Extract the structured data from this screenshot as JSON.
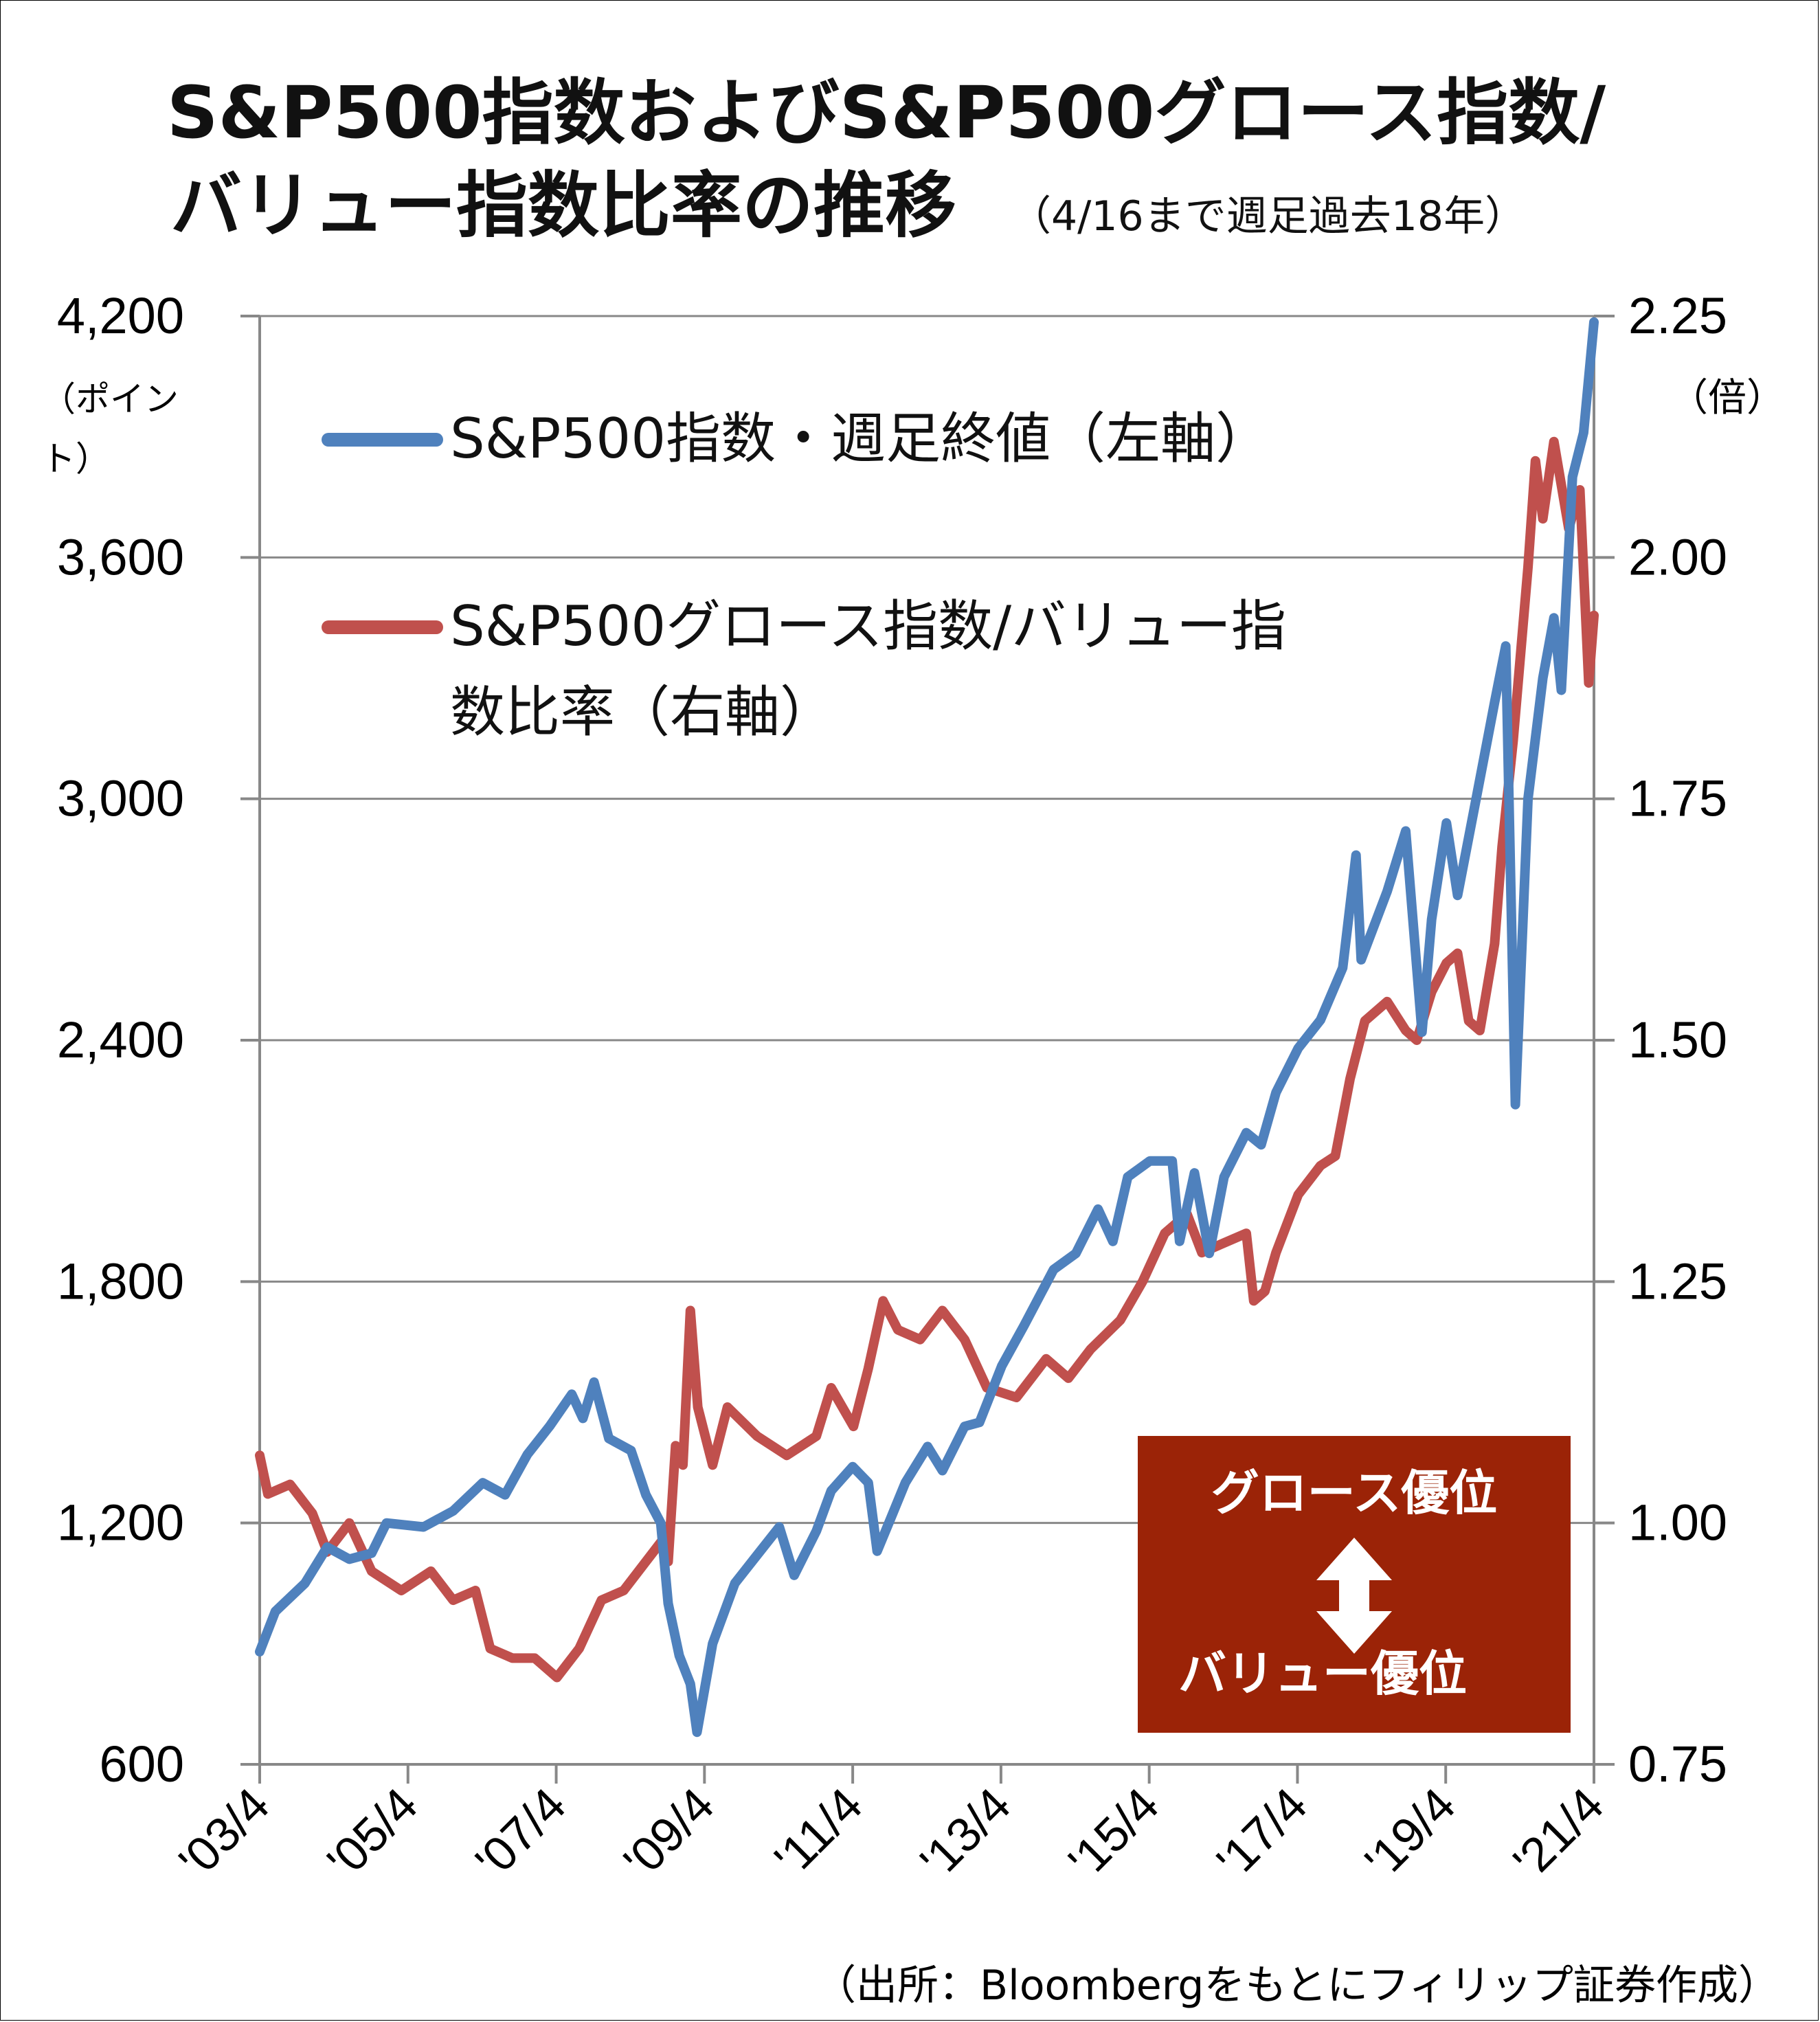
{
  "title": {
    "line1": "S&P500指数およびS&P500グロース指数/",
    "line2": "バリュー指数比率の推移",
    "period": "（4/16まで週足過去18年）"
  },
  "left_axis": {
    "unit_line1": "（ポイン",
    "unit_line2": "ト）",
    "ticks": [
      "4,200",
      "3,600",
      "3,000",
      "2,400",
      "1,800",
      "1,200",
      "600"
    ]
  },
  "right_axis": {
    "unit": "（倍）",
    "ticks": [
      "2.25",
      "2.00",
      "1.75",
      "1.50",
      "1.25",
      "1.00",
      "0.75"
    ]
  },
  "x_axis": {
    "ticks": [
      "'03/4",
      "'05/4",
      "'07/4",
      "'09/4",
      "'11/4",
      "'13/4",
      "'15/4",
      "'17/4",
      "'19/4",
      "'21/4"
    ]
  },
  "legend": {
    "sp500": "S&P500指数・週足終値（左軸）",
    "ratio_line1": "S&P500グロース指数/バリュー指",
    "ratio_line2": "数比率（右軸）"
  },
  "annotation": {
    "top": "グロース優位",
    "bottom": "バリュー優位",
    "arrow_icon": "double-arrow-vertical",
    "box_color": "#9B2307"
  },
  "source": "（出所：Bloombergをもとにフィリップ証券作成）",
  "colors": {
    "sp500": "#4F81BD",
    "ratio": "#C0504D",
    "grid": "#888888"
  },
  "chart_data": {
    "type": "line",
    "title": "S&P500指数およびS&P500グロース指数/バリュー指数比率の推移",
    "x_range": [
      2003.29,
      2021.29
    ],
    "x_tick_labels": [
      "'03/4",
      "'05/4",
      "'07/4",
      "'09/4",
      "'11/4",
      "'13/4",
      "'15/4",
      "'17/4",
      "'19/4",
      "'21/4"
    ],
    "y_left": {
      "range": [
        600,
        4200
      ],
      "ticks": [
        600,
        1200,
        1800,
        2400,
        3000,
        3600,
        4200
      ]
    },
    "y_right": {
      "range": [
        0.75,
        2.25
      ],
      "ticks": [
        0.75,
        1.0,
        1.25,
        1.5,
        1.75,
        2.0,
        2.25
      ]
    },
    "grid": true,
    "legend_position": "top-left",
    "series": [
      {
        "name": "S&P500指数・週足終値（左軸）",
        "axis": "left",
        "points": [
          [
            2003.29,
            880
          ],
          [
            2003.5,
            980
          ],
          [
            2003.9,
            1050
          ],
          [
            2004.2,
            1140
          ],
          [
            2004.5,
            1110
          ],
          [
            2004.8,
            1125
          ],
          [
            2005.0,
            1200
          ],
          [
            2005.5,
            1190
          ],
          [
            2005.9,
            1230
          ],
          [
            2006.3,
            1300
          ],
          [
            2006.6,
            1270
          ],
          [
            2006.9,
            1370
          ],
          [
            2007.2,
            1440
          ],
          [
            2007.5,
            1520
          ],
          [
            2007.65,
            1460
          ],
          [
            2007.8,
            1550
          ],
          [
            2008.0,
            1410
          ],
          [
            2008.3,
            1380
          ],
          [
            2008.5,
            1270
          ],
          [
            2008.7,
            1200
          ],
          [
            2008.8,
            1000
          ],
          [
            2008.95,
            870
          ],
          [
            2009.1,
            800
          ],
          [
            2009.19,
            680
          ],
          [
            2009.4,
            900
          ],
          [
            2009.7,
            1050
          ],
          [
            2010.0,
            1120
          ],
          [
            2010.3,
            1190
          ],
          [
            2010.5,
            1070
          ],
          [
            2010.8,
            1180
          ],
          [
            2011.0,
            1280
          ],
          [
            2011.29,
            1340
          ],
          [
            2011.5,
            1300
          ],
          [
            2011.62,
            1130
          ],
          [
            2011.8,
            1210
          ],
          [
            2012.0,
            1300
          ],
          [
            2012.3,
            1390
          ],
          [
            2012.5,
            1330
          ],
          [
            2012.8,
            1440
          ],
          [
            2013.0,
            1450
          ],
          [
            2013.3,
            1590
          ],
          [
            2013.6,
            1690
          ],
          [
            2014.0,
            1830
          ],
          [
            2014.3,
            1870
          ],
          [
            2014.6,
            1980
          ],
          [
            2014.8,
            1900
          ],
          [
            2015.0,
            2060
          ],
          [
            2015.3,
            2100
          ],
          [
            2015.6,
            2100
          ],
          [
            2015.7,
            1900
          ],
          [
            2015.9,
            2070
          ],
          [
            2016.1,
            1870
          ],
          [
            2016.3,
            2060
          ],
          [
            2016.6,
            2170
          ],
          [
            2016.8,
            2140
          ],
          [
            2017.0,
            2270
          ],
          [
            2017.3,
            2380
          ],
          [
            2017.6,
            2450
          ],
          [
            2017.9,
            2580
          ],
          [
            2018.08,
            2860
          ],
          [
            2018.15,
            2600
          ],
          [
            2018.5,
            2770
          ],
          [
            2018.75,
            2920
          ],
          [
            2018.97,
            2420
          ],
          [
            2019.1,
            2700
          ],
          [
            2019.3,
            2940
          ],
          [
            2019.45,
            2760
          ],
          [
            2019.7,
            3000
          ],
          [
            2019.95,
            3240
          ],
          [
            2020.1,
            3380
          ],
          [
            2020.23,
            2240
          ],
          [
            2020.4,
            3000
          ],
          [
            2020.6,
            3300
          ],
          [
            2020.75,
            3450
          ],
          [
            2020.85,
            3270
          ],
          [
            2021.0,
            3800
          ],
          [
            2021.15,
            3910
          ],
          [
            2021.29,
            4185
          ]
        ]
      },
      {
        "name": "S&P500グロース指数/バリュー指数比率（右軸）",
        "axis": "right",
        "points": [
          [
            2003.29,
            1.07
          ],
          [
            2003.4,
            1.03
          ],
          [
            2003.7,
            1.04
          ],
          [
            2004.0,
            1.01
          ],
          [
            2004.2,
            0.97
          ],
          [
            2004.5,
            1.0
          ],
          [
            2004.8,
            0.95
          ],
          [
            2005.2,
            0.93
          ],
          [
            2005.6,
            0.95
          ],
          [
            2005.9,
            0.92
          ],
          [
            2006.2,
            0.93
          ],
          [
            2006.4,
            0.87
          ],
          [
            2006.7,
            0.86
          ],
          [
            2007.0,
            0.86
          ],
          [
            2007.3,
            0.84
          ],
          [
            2007.6,
            0.87
          ],
          [
            2007.9,
            0.92
          ],
          [
            2008.2,
            0.93
          ],
          [
            2008.5,
            0.96
          ],
          [
            2008.7,
            0.98
          ],
          [
            2008.8,
            0.96
          ],
          [
            2008.9,
            1.08
          ],
          [
            2009.0,
            1.06
          ],
          [
            2009.1,
            1.22
          ],
          [
            2009.2,
            1.12
          ],
          [
            2009.4,
            1.06
          ],
          [
            2009.6,
            1.12
          ],
          [
            2010.0,
            1.09
          ],
          [
            2010.4,
            1.07
          ],
          [
            2010.8,
            1.09
          ],
          [
            2011.0,
            1.14
          ],
          [
            2011.3,
            1.1
          ],
          [
            2011.5,
            1.16
          ],
          [
            2011.7,
            1.23
          ],
          [
            2011.9,
            1.2
          ],
          [
            2012.2,
            1.19
          ],
          [
            2012.5,
            1.22
          ],
          [
            2012.8,
            1.19
          ],
          [
            2013.1,
            1.14
          ],
          [
            2013.5,
            1.13
          ],
          [
            2013.9,
            1.17
          ],
          [
            2014.2,
            1.15
          ],
          [
            2014.5,
            1.18
          ],
          [
            2014.9,
            1.21
          ],
          [
            2015.2,
            1.25
          ],
          [
            2015.5,
            1.3
          ],
          [
            2015.8,
            1.32
          ],
          [
            2016.0,
            1.28
          ],
          [
            2016.3,
            1.29
          ],
          [
            2016.6,
            1.3
          ],
          [
            2016.7,
            1.23
          ],
          [
            2016.85,
            1.24
          ],
          [
            2017.0,
            1.28
          ],
          [
            2017.3,
            1.34
          ],
          [
            2017.6,
            1.37
          ],
          [
            2017.8,
            1.38
          ],
          [
            2018.0,
            1.46
          ],
          [
            2018.2,
            1.52
          ],
          [
            2018.5,
            1.54
          ],
          [
            2018.75,
            1.51
          ],
          [
            2018.9,
            1.5
          ],
          [
            2019.1,
            1.55
          ],
          [
            2019.3,
            1.58
          ],
          [
            2019.45,
            1.59
          ],
          [
            2019.6,
            1.52
          ],
          [
            2019.75,
            1.51
          ],
          [
            2019.95,
            1.6
          ],
          [
            2020.05,
            1.7
          ],
          [
            2020.2,
            1.81
          ],
          [
            2020.4,
            1.99
          ],
          [
            2020.5,
            2.1
          ],
          [
            2020.6,
            2.04
          ],
          [
            2020.75,
            2.12
          ],
          [
            2020.95,
            2.03
          ],
          [
            2021.1,
            2.07
          ],
          [
            2021.22,
            1.87
          ],
          [
            2021.29,
            1.94
          ]
        ]
      }
    ]
  }
}
